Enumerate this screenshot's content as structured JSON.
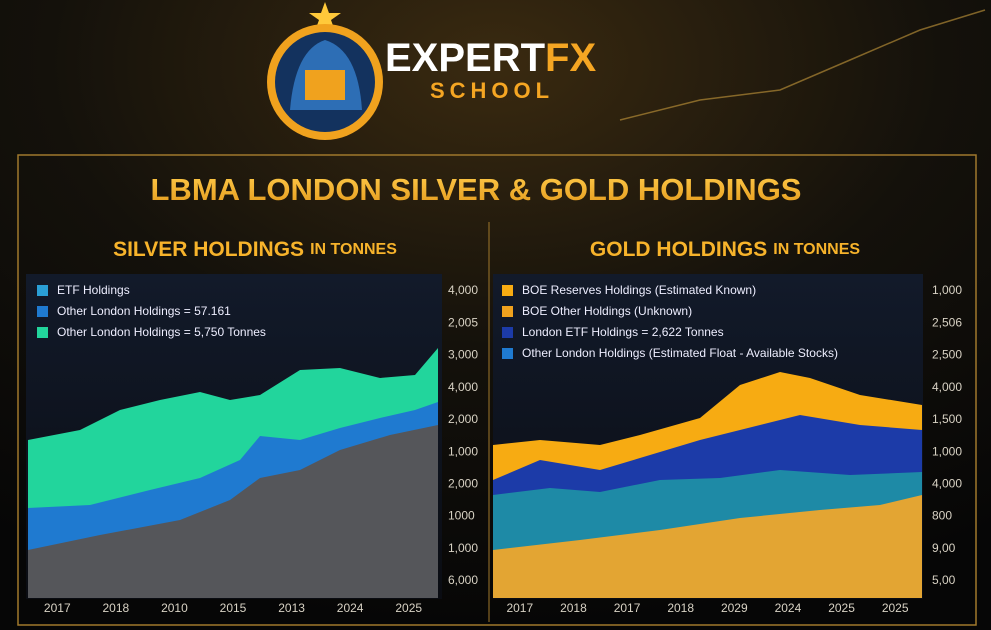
{
  "brand": {
    "name_left": "EXPERT",
    "name_right": "FX",
    "subtitle": "SCHOOL"
  },
  "title": "LBMA LONDON SILVER & GOLD HOLDINGS",
  "panels": [
    {
      "heading": "SILVER HOLDINGS",
      "heading_suffix": "IN TONNES",
      "legend": [
        "ETF Holdings",
        "Other London Holdings = 57.161",
        "Other London Holdings = 5,750 Tonnes"
      ],
      "y_labels": [
        "4,000",
        "2,005",
        "3,000",
        "4,000",
        "2,000",
        "1,000",
        "2,000",
        "1000",
        "1,000",
        "6,000"
      ],
      "x_labels": [
        "2017",
        "2018",
        "2010",
        "2015",
        "2013",
        "2024",
        "2025"
      ]
    },
    {
      "heading": "GOLD HOLDINGS",
      "heading_suffix": "IN TONNES",
      "legend": [
        "BOE Reserves Holdings (Estimated Known)",
        "BOE Other Holdings (Unknown)",
        "London ETF Holdings = 2,622 Tonnes",
        "Other London Holdings (Estimated Float - Available Stocks)"
      ],
      "y_labels": [
        "1,000",
        "2,506",
        "2,500",
        "4,000",
        "1,500",
        "1,000",
        "4,000",
        "800",
        "9,00",
        "5,00"
      ],
      "x_labels": [
        "2017",
        "2018",
        "2017",
        "2018",
        "2029",
        "2024",
        "2025",
        "2025"
      ]
    }
  ]
}
